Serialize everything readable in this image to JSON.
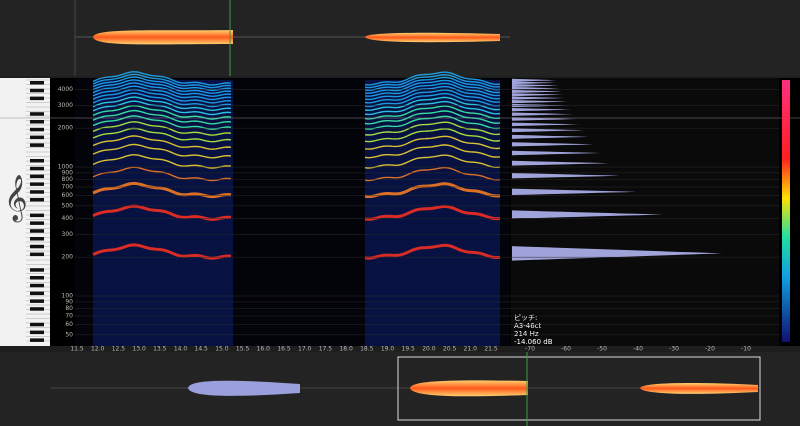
{
  "pitch_info": {
    "heading": "ピッチ:",
    "note": "A3-46ct",
    "frequency": "214 Hz",
    "level": "-14.060 dB"
  },
  "frequency_labels": [
    "4000",
    "3000",
    "2000",
    "1000",
    "900",
    "800",
    "700",
    "600",
    "500",
    "400",
    "300",
    "200",
    "100",
    "90",
    "80",
    "70",
    "60",
    "50"
  ],
  "time_labels": [
    "11.5",
    "12.0",
    "12.5",
    "13.0",
    "13.5",
    "14.0",
    "14.5",
    "15.0",
    "15.5",
    "16.0",
    "16.5",
    "17.0",
    "17.5",
    "18.0",
    "18.5",
    "19.0",
    "19.5",
    "20.0",
    "20.5",
    "21.0",
    "21.5"
  ],
  "db_labels": [
    "-70",
    "-60",
    "-50",
    "-40",
    "-30",
    "-20",
    "-10"
  ]
}
